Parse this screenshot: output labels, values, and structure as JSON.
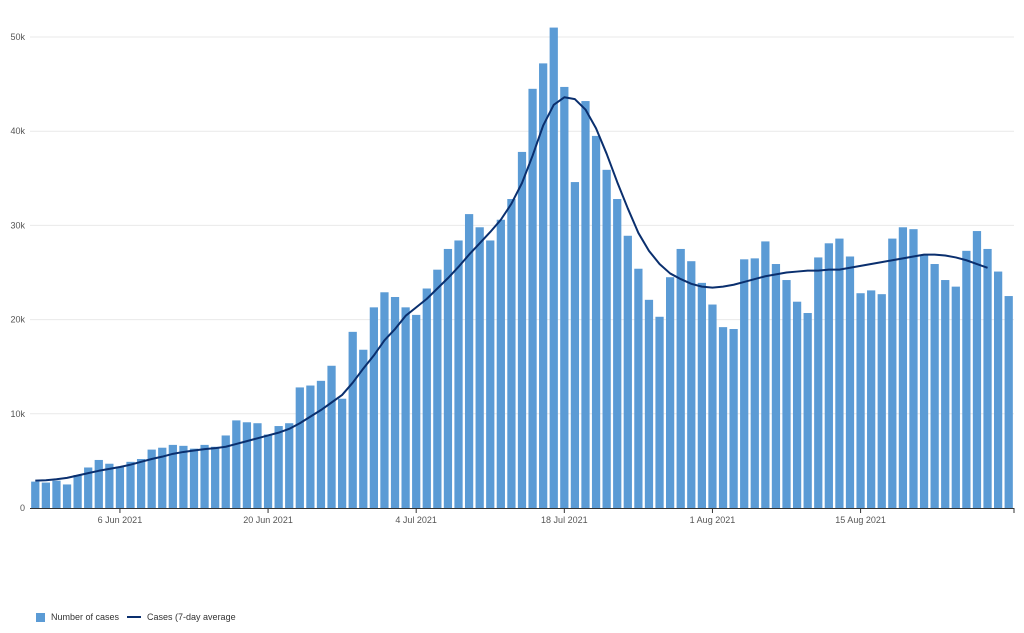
{
  "colors": {
    "bar": "#5b9bd5",
    "line": "#0a2f6e",
    "grid": "#e9e9e9",
    "axis": "#333333",
    "text": "#555555"
  },
  "legend": {
    "bar_label": "Number of cases",
    "line_label": "Cases (7-day average"
  },
  "chart_data": {
    "type": "bar",
    "grid": true,
    "legend_position": "bottom-left",
    "ylim": [
      0,
      50000
    ],
    "y_ticks": [
      {
        "value": 0,
        "label": "0"
      },
      {
        "value": 10000,
        "label": "10k"
      },
      {
        "value": 20000,
        "label": "20k"
      },
      {
        "value": 30000,
        "label": "30k"
      },
      {
        "value": 40000,
        "label": "40k"
      },
      {
        "value": 50000,
        "label": "50k"
      }
    ],
    "x_start": "2021-05-29",
    "x_ticks": [
      {
        "date": "2021-06-06",
        "label": "6 Jun 2021"
      },
      {
        "date": "2021-06-20",
        "label": "20 Jun 2021"
      },
      {
        "date": "2021-07-04",
        "label": "4 Jul 2021"
      },
      {
        "date": "2021-07-18",
        "label": "18 Jul 2021"
      },
      {
        "date": "2021-08-01",
        "label": "1 Aug 2021"
      },
      {
        "date": "2021-08-15",
        "label": "15 Aug 2021"
      }
    ],
    "series": [
      {
        "name": "Number of cases",
        "type": "bar",
        "values": [
          2800,
          2700,
          2900,
          2500,
          3500,
          4300,
          5100,
          4700,
          4400,
          4900,
          5200,
          6200,
          6400,
          6700,
          6600,
          6300,
          6700,
          6500,
          7700,
          9300,
          9100,
          9000,
          7800,
          8700,
          9000,
          12800,
          13000,
          13500,
          15100,
          11600,
          18700,
          16800,
          21300,
          22900,
          22400,
          21300,
          20500,
          23300,
          25300,
          27500,
          28400,
          31200,
          29800,
          28400,
          30600,
          32800,
          37800,
          44500,
          47200,
          51000,
          44700,
          34600,
          43200,
          39500,
          35900,
          32800,
          28900,
          25400,
          22100,
          20300,
          24500,
          27500,
          26200,
          23900,
          21600,
          19200,
          19000,
          26400,
          26500,
          28300,
          25900,
          24200,
          21900,
          20700,
          26600,
          28100,
          28600,
          26700,
          22800,
          23100,
          22700,
          28600,
          29800,
          29600,
          26900,
          25900,
          24200,
          23500,
          27300,
          29400,
          27500,
          25100,
          22500
        ]
      },
      {
        "name": "Cases (7-day average",
        "type": "line",
        "values": [
          2900,
          2950,
          3050,
          3200,
          3450,
          3700,
          3950,
          4150,
          4350,
          4600,
          4900,
          5200,
          5450,
          5750,
          5950,
          6100,
          6250,
          6350,
          6500,
          6800,
          7100,
          7400,
          7700,
          8000,
          8400,
          9000,
          9700,
          10400,
          11200,
          12000,
          13300,
          14800,
          16200,
          17800,
          19000,
          20400,
          21300,
          22200,
          23300,
          24400,
          25600,
          26900,
          28100,
          29300,
          30600,
          32300,
          34500,
          37400,
          40600,
          42800,
          43600,
          43400,
          42300,
          40300,
          37600,
          34600,
          31800,
          29200,
          27300,
          25900,
          24900,
          24300,
          23800,
          23500,
          23400,
          23500,
          23700,
          24000,
          24300,
          24600,
          24800,
          25000,
          25100,
          25200,
          25200,
          25300,
          25300,
          25500,
          25700,
          25900,
          26100,
          26300,
          26500,
          26700,
          26900,
          26900,
          26800,
          26600,
          26300,
          25900,
          25500
        ]
      }
    ]
  }
}
